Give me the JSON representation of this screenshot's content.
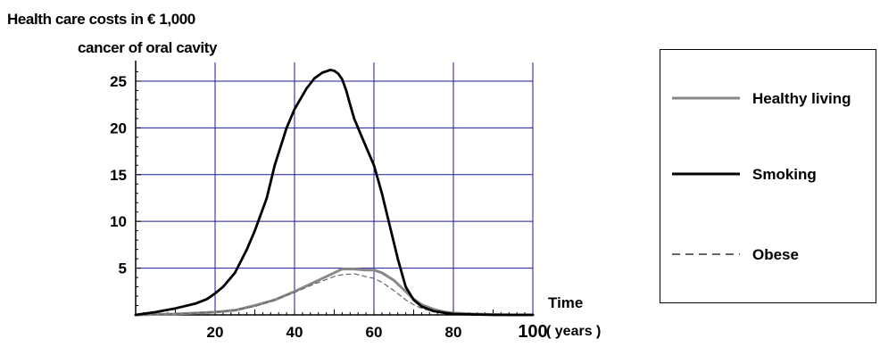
{
  "chart_data": {
    "type": "line",
    "title": "Health care costs in € 1,000",
    "subtitle": "cancer of oral cavity",
    "xlabel": "Time",
    "xlabel_unit": "( years )",
    "ylabel": "",
    "xlim": [
      0,
      100
    ],
    "ylim": [
      0,
      27
    ],
    "xticks": [
      20,
      40,
      60,
      80,
      100
    ],
    "yticks": [
      5,
      10,
      15,
      20,
      25
    ],
    "grid": true,
    "legend_position": "right",
    "series": [
      {
        "name": "Healthy living",
        "color": "#888888",
        "style": "solid",
        "x": [
          0,
          10,
          20,
          25,
          30,
          35,
          40,
          45,
          50,
          52,
          55,
          58,
          60,
          62,
          65,
          68,
          70,
          72,
          75,
          78,
          80,
          85,
          90,
          95,
          100
        ],
        "y": [
          0,
          0.1,
          0.3,
          0.5,
          1.0,
          1.6,
          2.5,
          3.5,
          4.5,
          4.9,
          4.9,
          4.8,
          4.8,
          4.5,
          3.7,
          2.5,
          1.7,
          1.1,
          0.6,
          0.3,
          0.2,
          0.1,
          0.05,
          0,
          0
        ]
      },
      {
        "name": "Smoking",
        "color": "#000000",
        "style": "solid",
        "x": [
          0,
          5,
          10,
          15,
          18,
          20,
          22,
          25,
          28,
          30,
          33,
          35,
          38,
          40,
          43,
          45,
          47,
          49,
          50,
          51,
          52,
          53,
          54,
          55,
          57,
          60,
          62,
          64,
          66,
          68,
          70,
          72,
          75,
          78,
          80,
          85,
          90,
          95,
          100
        ],
        "y": [
          0,
          0.3,
          0.7,
          1.2,
          1.7,
          2.3,
          3.0,
          4.5,
          7.0,
          9.0,
          12.5,
          16.0,
          20.0,
          22.0,
          24.2,
          25.3,
          25.9,
          26.2,
          26.1,
          25.8,
          25.2,
          24.0,
          22.5,
          21.0,
          19.0,
          16.0,
          13.0,
          9.5,
          6.0,
          3.0,
          1.6,
          0.9,
          0.4,
          0.2,
          0.1,
          0.05,
          0,
          0,
          0
        ]
      },
      {
        "name": "Obese",
        "color": "#666666",
        "style": "dashed",
        "x": [
          0,
          10,
          20,
          25,
          30,
          35,
          40,
          45,
          50,
          52,
          55,
          57,
          60,
          62,
          65,
          68,
          70,
          72,
          75,
          78,
          80,
          85,
          90,
          95,
          100
        ],
        "y": [
          0,
          0.1,
          0.3,
          0.5,
          0.9,
          1.6,
          2.4,
          3.3,
          4.1,
          4.3,
          4.4,
          4.2,
          3.9,
          3.5,
          2.6,
          1.6,
          1.1,
          0.7,
          0.35,
          0.2,
          0.1,
          0.05,
          0,
          0,
          0
        ]
      }
    ]
  }
}
